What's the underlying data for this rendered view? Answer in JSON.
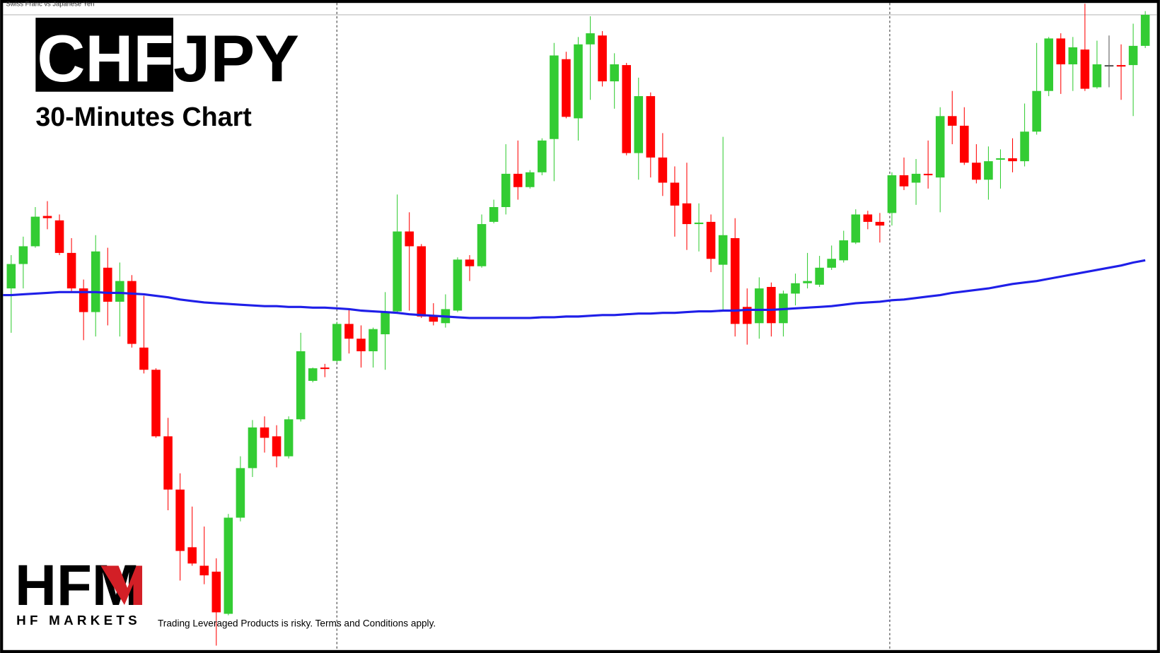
{
  "chart_data": {
    "type": "candlestick",
    "header": "Swiss Franc vs Japanese Yen",
    "title_base": "CHF",
    "title_quote": "JPY",
    "subtitle": "30-Minutes Chart",
    "ylim": [
      0,
      883
    ],
    "up_color": "#33cc33",
    "down_color": "#ff0000",
    "doji_color": "#555555",
    "open": [
      493,
      526,
      550,
      591,
      585,
      541,
      493,
      461,
      521,
      475,
      503,
      413,
      383,
      293,
      221,
      143,
      118,
      110,
      53,
      183,
      250,
      305,
      293,
      266,
      316,
      368,
      386,
      395,
      445,
      425,
      408,
      431,
      462,
      570,
      550,
      455,
      446,
      463,
      532,
      523,
      583,
      603,
      648,
      630,
      650,
      695,
      803,
      723,
      823,
      835,
      773,
      795,
      676,
      753,
      670,
      636,
      608,
      581,
      583,
      525,
      561,
      468,
      446,
      495,
      446,
      486,
      500,
      498,
      521,
      531,
      555,
      593,
      583,
      595,
      646,
      636,
      648,
      643,
      726,
      713,
      663,
      640,
      667,
      669,
      665,
      705,
      760,
      831,
      796,
      816,
      765,
      795,
      795,
      795,
      821
    ],
    "high": [
      538,
      563,
      603,
      611,
      593,
      561,
      505,
      565,
      548,
      528,
      511,
      483,
      385,
      318,
      243,
      198,
      171,
      128,
      188,
      266,
      315,
      320,
      308,
      320,
      433,
      386,
      391,
      448,
      465,
      443,
      440,
      488,
      620,
      596,
      553,
      473,
      485,
      535,
      538,
      593,
      613,
      688,
      693,
      653,
      696,
      825,
      813,
      833,
      861,
      841,
      811,
      798,
      778,
      758,
      703,
      658,
      663,
      608,
      593,
      698,
      588,
      493,
      508,
      501,
      490,
      513,
      541,
      537,
      551,
      571,
      600,
      598,
      595,
      650,
      670,
      668,
      693,
      738,
      760,
      738,
      688,
      685,
      681,
      696,
      743,
      825,
      833,
      838,
      833,
      878,
      828,
      835,
      823,
      851,
      868
    ],
    "low": [
      433,
      493,
      548,
      573,
      538,
      488,
      423,
      428,
      443,
      428,
      413,
      378,
      291,
      193,
      98,
      118,
      93,
      10,
      51,
      178,
      238,
      271,
      251,
      263,
      313,
      366,
      373,
      393,
      405,
      386,
      386,
      383,
      460,
      463,
      453,
      443,
      440,
      461,
      503,
      521,
      581,
      593,
      613,
      628,
      646,
      638,
      723,
      693,
      748,
      766,
      736,
      673,
      640,
      643,
      618,
      563,
      545,
      543,
      515,
      463,
      428,
      417,
      425,
      428,
      428,
      470,
      493,
      495,
      518,
      528,
      553,
      573,
      555,
      578,
      626,
      606,
      628,
      596,
      688,
      660,
      635,
      613,
      628,
      650,
      658,
      701,
      753,
      756,
      760,
      760,
      763,
      765,
      748,
      726,
      818
    ],
    "close": [
      526,
      550,
      590,
      588,
      541,
      493,
      461,
      543,
      475,
      503,
      418,
      383,
      293,
      221,
      138,
      121,
      105,
      55,
      183,
      250,
      305,
      291,
      266,
      316,
      408,
      385,
      384,
      445,
      425,
      408,
      438,
      462,
      570,
      550,
      455,
      448,
      465,
      532,
      523,
      580,
      603,
      648,
      630,
      650,
      693,
      808,
      725,
      823,
      838,
      773,
      796,
      676,
      753,
      670,
      636,
      605,
      580,
      582,
      533,
      565,
      445,
      445,
      493,
      446,
      486,
      500,
      503,
      521,
      533,
      558,
      593,
      583,
      578,
      646,
      631,
      648,
      646,
      726,
      713,
      663,
      640,
      665,
      669,
      665,
      705,
      760,
      831,
      796,
      819,
      763,
      796,
      795,
      793,
      821,
      863
    ],
    "ma": {
      "color": "#1f1fe8",
      "values": [
        484,
        485,
        486,
        487,
        488,
        488,
        488,
        488,
        487,
        487,
        486,
        485,
        483,
        481,
        478,
        476,
        474,
        473,
        472,
        471,
        470,
        469,
        469,
        468,
        468,
        467,
        467,
        466,
        465,
        463,
        462,
        461,
        460,
        458,
        457,
        456,
        455,
        454,
        453,
        453,
        453,
        453,
        453,
        453,
        454,
        454,
        455,
        455,
        456,
        457,
        457,
        458,
        459,
        459,
        460,
        460,
        461,
        462,
        462,
        463,
        463,
        464,
        464,
        464,
        465,
        466,
        467,
        468,
        469,
        471,
        473,
        474,
        475,
        477,
        478,
        480,
        482,
        484,
        487,
        489,
        491,
        493,
        496,
        499,
        501,
        503,
        506,
        509,
        512,
        515,
        518,
        521,
        524,
        528,
        531
      ]
    }
  },
  "branding": {
    "logo": "HFM",
    "company": "HF MARKETS",
    "disclaimer": "Trading Leveraged Products is risky. Terms and Conditions apply."
  }
}
